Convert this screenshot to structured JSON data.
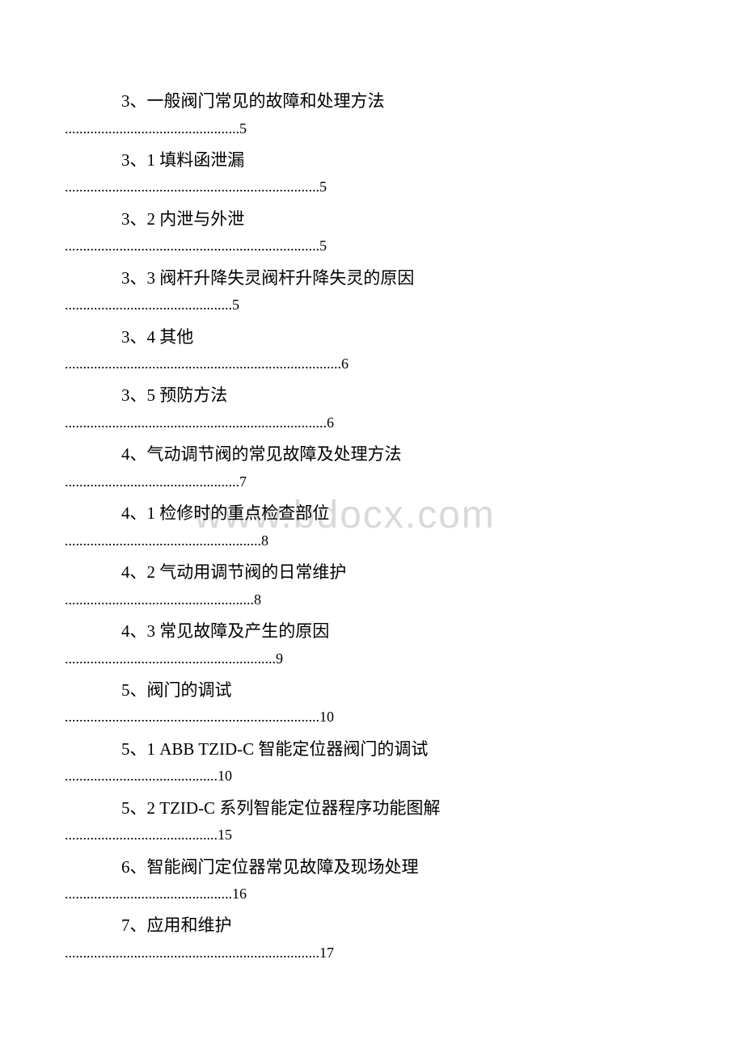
{
  "watermark": "www.bdocx.com",
  "toc": [
    {
      "title": "3、一般阀门常见的故障和处理方法",
      "page": "5",
      "leader_width": 48
    },
    {
      "title": "3、1 填料函泄漏",
      "page": "5",
      "leader_width": 70
    },
    {
      "title": "3、2 内泄与外泄",
      "page": "5",
      "leader_width": 70
    },
    {
      "title": "3、3 阀杆升降失灵阀杆升降失灵的原因",
      "page": "5",
      "leader_width": 46
    },
    {
      "title": "3、4 其他",
      "page": "6",
      "leader_width": 76
    },
    {
      "title": "3、5 预防方法",
      "page": "6",
      "leader_width": 72
    },
    {
      "title": "4、气动调节阀的常见故障及处理方法",
      "page": "7",
      "leader_width": 48
    },
    {
      "title": "4、1 检修时的重点检查部位",
      "page": "8",
      "leader_width": 54
    },
    {
      "title": "4、2 气动用调节阀的日常维护",
      "page": "8",
      "leader_width": 52
    },
    {
      "title": "4、3 常见故障及产生的原因",
      "page": "9",
      "leader_width": 58
    },
    {
      "title": "5、阀门的调试",
      "page": "10",
      "leader_width": 70
    },
    {
      "title": "5、1 ABB TZID-C 智能定位器阀门的调试",
      "page": "10",
      "leader_width": 42
    },
    {
      "title": "5、2 TZID-C 系列智能定位器程序功能图解",
      "page": "15",
      "leader_width": 42
    },
    {
      "title": "6、智能阀门定位器常见故障及现场处理",
      "page": "16",
      "leader_width": 46
    },
    {
      "title": "7、应用和维护",
      "page": "17",
      "leader_width": 70
    }
  ],
  "colors": {
    "background": "#ffffff",
    "text": "#000000",
    "watermark": "#d9d9d9"
  },
  "typography": {
    "title_fontsize": 21,
    "leader_fontsize": 18,
    "watermark_fontsize": 48
  }
}
